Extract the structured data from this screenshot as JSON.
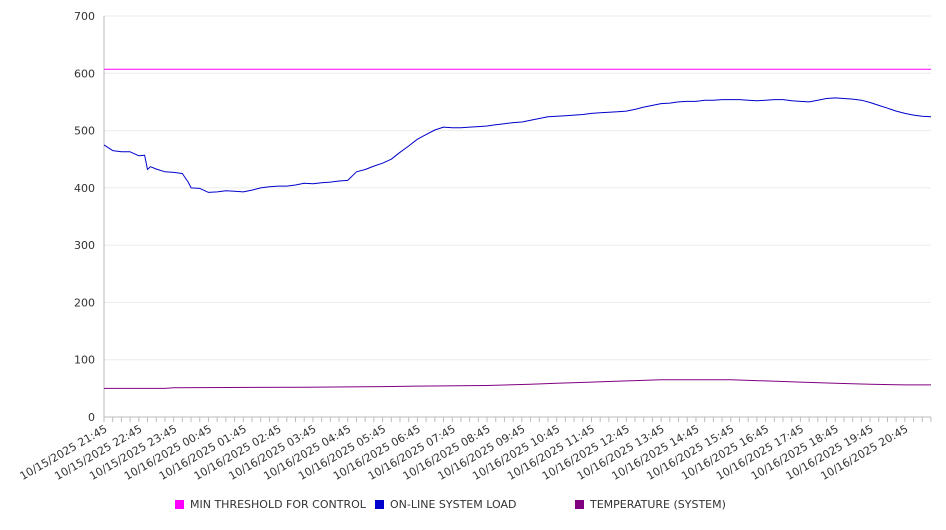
{
  "chart_data": {
    "type": "line",
    "title": "",
    "xlabel": "",
    "ylabel": "",
    "ylim": [
      0,
      700
    ],
    "y_ticks": [
      0,
      100,
      200,
      300,
      400,
      500,
      600,
      700
    ],
    "grid": "horizontal",
    "legend_placement": "bottom",
    "x_tick_labels": [
      "10/15/2025 21:45",
      "10/15/2025 22:45",
      "10/15/2025 23:45",
      "10/16/2025 00:45",
      "10/16/2025 01:45",
      "10/16/2025 02:45",
      "10/16/2025 03:45",
      "10/16/2025 04:45",
      "10/16/2025 05:45",
      "10/16/2025 06:45",
      "10/16/2025 07:45",
      "10/16/2025 08:45",
      "10/16/2025 09:45",
      "10/16/2025 10:45",
      "10/16/2025 11:45",
      "10/16/2025 12:45",
      "10/16/2025 13:45",
      "10/16/2025 14:45",
      "10/16/2025 15:45",
      "10/16/2025 16:45",
      "10/16/2025 17:45",
      "10/16/2025 18:45",
      "10/16/2025 19:45",
      "10/16/2025 20:45"
    ],
    "x_range": [
      "10/15/2025 21:45",
      "10/16/2025 21:30"
    ],
    "series": [
      {
        "name": "MIN THRESHOLD FOR CONTROL",
        "color": "#ff00ff",
        "points": [
          [
            "10/15/2025 21:45",
            607
          ],
          [
            "10/16/2025 21:30",
            607
          ]
        ]
      },
      {
        "name": "ON-LINE SYSTEM LOAD",
        "color": "#0000cc",
        "points": [
          [
            "10/15/2025 21:45",
            475
          ],
          [
            "10/15/2025 22:00",
            465
          ],
          [
            "10/15/2025 22:15",
            463
          ],
          [
            "10/15/2025 22:30",
            463
          ],
          [
            "10/15/2025 22:45",
            456
          ],
          [
            "10/15/2025 22:55",
            457
          ],
          [
            "10/15/2025 23:00",
            432
          ],
          [
            "10/15/2025 23:05",
            437
          ],
          [
            "10/15/2025 23:15",
            433
          ],
          [
            "10/15/2025 23:30",
            428
          ],
          [
            "10/15/2025 23:45",
            427
          ],
          [
            "10/16/2025 00:00",
            425
          ],
          [
            "10/16/2025 00:10",
            410
          ],
          [
            "10/16/2025 00:15",
            400
          ],
          [
            "10/16/2025 00:30",
            399
          ],
          [
            "10/16/2025 00:45",
            392
          ],
          [
            "10/16/2025 01:00",
            393
          ],
          [
            "10/16/2025 01:15",
            395
          ],
          [
            "10/16/2025 01:30",
            394
          ],
          [
            "10/16/2025 01:45",
            393
          ],
          [
            "10/16/2025 02:00",
            396
          ],
          [
            "10/16/2025 02:15",
            400
          ],
          [
            "10/16/2025 02:30",
            402
          ],
          [
            "10/16/2025 02:45",
            403
          ],
          [
            "10/16/2025 03:00",
            403
          ],
          [
            "10/16/2025 03:15",
            405
          ],
          [
            "10/16/2025 03:30",
            408
          ],
          [
            "10/16/2025 03:45",
            407
          ],
          [
            "10/16/2025 04:00",
            409
          ],
          [
            "10/16/2025 04:15",
            410
          ],
          [
            "10/16/2025 04:30",
            412
          ],
          [
            "10/16/2025 04:45",
            413
          ],
          [
            "10/16/2025 05:00",
            428
          ],
          [
            "10/16/2025 05:15",
            432
          ],
          [
            "10/16/2025 05:30",
            438
          ],
          [
            "10/16/2025 05:45",
            443
          ],
          [
            "10/16/2025 06:00",
            450
          ],
          [
            "10/16/2025 06:15",
            462
          ],
          [
            "10/16/2025 06:30",
            473
          ],
          [
            "10/16/2025 06:45",
            485
          ],
          [
            "10/16/2025 07:00",
            493
          ],
          [
            "10/16/2025 07:15",
            501
          ],
          [
            "10/16/2025 07:30",
            506
          ],
          [
            "10/16/2025 07:45",
            505
          ],
          [
            "10/16/2025 08:00",
            505
          ],
          [
            "10/16/2025 08:15",
            506
          ],
          [
            "10/16/2025 08:30",
            507
          ],
          [
            "10/16/2025 08:45",
            508
          ],
          [
            "10/16/2025 09:00",
            510
          ],
          [
            "10/16/2025 09:15",
            512
          ],
          [
            "10/16/2025 09:30",
            514
          ],
          [
            "10/16/2025 09:45",
            515
          ],
          [
            "10/16/2025 10:00",
            518
          ],
          [
            "10/16/2025 10:15",
            521
          ],
          [
            "10/16/2025 10:30",
            524
          ],
          [
            "10/16/2025 10:45",
            525
          ],
          [
            "10/16/2025 11:00",
            526
          ],
          [
            "10/16/2025 11:15",
            527
          ],
          [
            "10/16/2025 11:30",
            528
          ],
          [
            "10/16/2025 11:45",
            530
          ],
          [
            "10/16/2025 12:00",
            531
          ],
          [
            "10/16/2025 12:15",
            532
          ],
          [
            "10/16/2025 12:30",
            533
          ],
          [
            "10/16/2025 12:45",
            534
          ],
          [
            "10/16/2025 13:00",
            537
          ],
          [
            "10/16/2025 13:15",
            541
          ],
          [
            "10/16/2025 13:30",
            544
          ],
          [
            "10/16/2025 13:45",
            547
          ],
          [
            "10/16/2025 14:00",
            548
          ],
          [
            "10/16/2025 14:15",
            550
          ],
          [
            "10/16/2025 14:30",
            551
          ],
          [
            "10/16/2025 14:45",
            551
          ],
          [
            "10/16/2025 15:00",
            553
          ],
          [
            "10/16/2025 15:15",
            553
          ],
          [
            "10/16/2025 15:30",
            554
          ],
          [
            "10/16/2025 15:45",
            554
          ],
          [
            "10/16/2025 16:00",
            554
          ],
          [
            "10/16/2025 16:15",
            553
          ],
          [
            "10/16/2025 16:30",
            552
          ],
          [
            "10/16/2025 16:45",
            553
          ],
          [
            "10/16/2025 17:00",
            554
          ],
          [
            "10/16/2025 17:15",
            554
          ],
          [
            "10/16/2025 17:30",
            552
          ],
          [
            "10/16/2025 17:45",
            551
          ],
          [
            "10/16/2025 18:00",
            550
          ],
          [
            "10/16/2025 18:15",
            553
          ],
          [
            "10/16/2025 18:30",
            556
          ],
          [
            "10/16/2025 18:45",
            557
          ],
          [
            "10/16/2025 19:00",
            556
          ],
          [
            "10/16/2025 19:15",
            555
          ],
          [
            "10/16/2025 19:30",
            553
          ],
          [
            "10/16/2025 19:45",
            549
          ],
          [
            "10/16/2025 20:00",
            544
          ],
          [
            "10/16/2025 20:15",
            539
          ],
          [
            "10/16/2025 20:30",
            534
          ],
          [
            "10/16/2025 20:45",
            530
          ],
          [
            "10/16/2025 21:00",
            527
          ],
          [
            "10/16/2025 21:15",
            525
          ],
          [
            "10/16/2025 21:30",
            524
          ]
        ]
      },
      {
        "name": "TEMPERATURE (SYSTEM)",
        "color": "#800080",
        "points": [
          [
            "10/15/2025 21:45",
            50
          ],
          [
            "10/15/2025 23:30",
            50
          ],
          [
            "10/15/2025 23:45",
            51
          ],
          [
            "10/16/2025 03:30",
            52
          ],
          [
            "10/16/2025 05:45",
            53
          ],
          [
            "10/16/2025 06:45",
            54
          ],
          [
            "10/16/2025 08:45",
            55
          ],
          [
            "10/16/2025 10:00",
            57
          ],
          [
            "10/16/2025 10:45",
            59
          ],
          [
            "10/16/2025 11:45",
            61
          ],
          [
            "10/16/2025 12:45",
            63
          ],
          [
            "10/16/2025 13:45",
            65
          ],
          [
            "10/16/2025 15:45",
            65
          ],
          [
            "10/16/2025 16:45",
            63
          ],
          [
            "10/16/2025 17:45",
            61
          ],
          [
            "10/16/2025 18:45",
            59
          ],
          [
            "10/16/2025 19:45",
            57
          ],
          [
            "10/16/2025 20:45",
            56
          ],
          [
            "10/16/2025 21:30",
            56
          ]
        ]
      }
    ]
  }
}
